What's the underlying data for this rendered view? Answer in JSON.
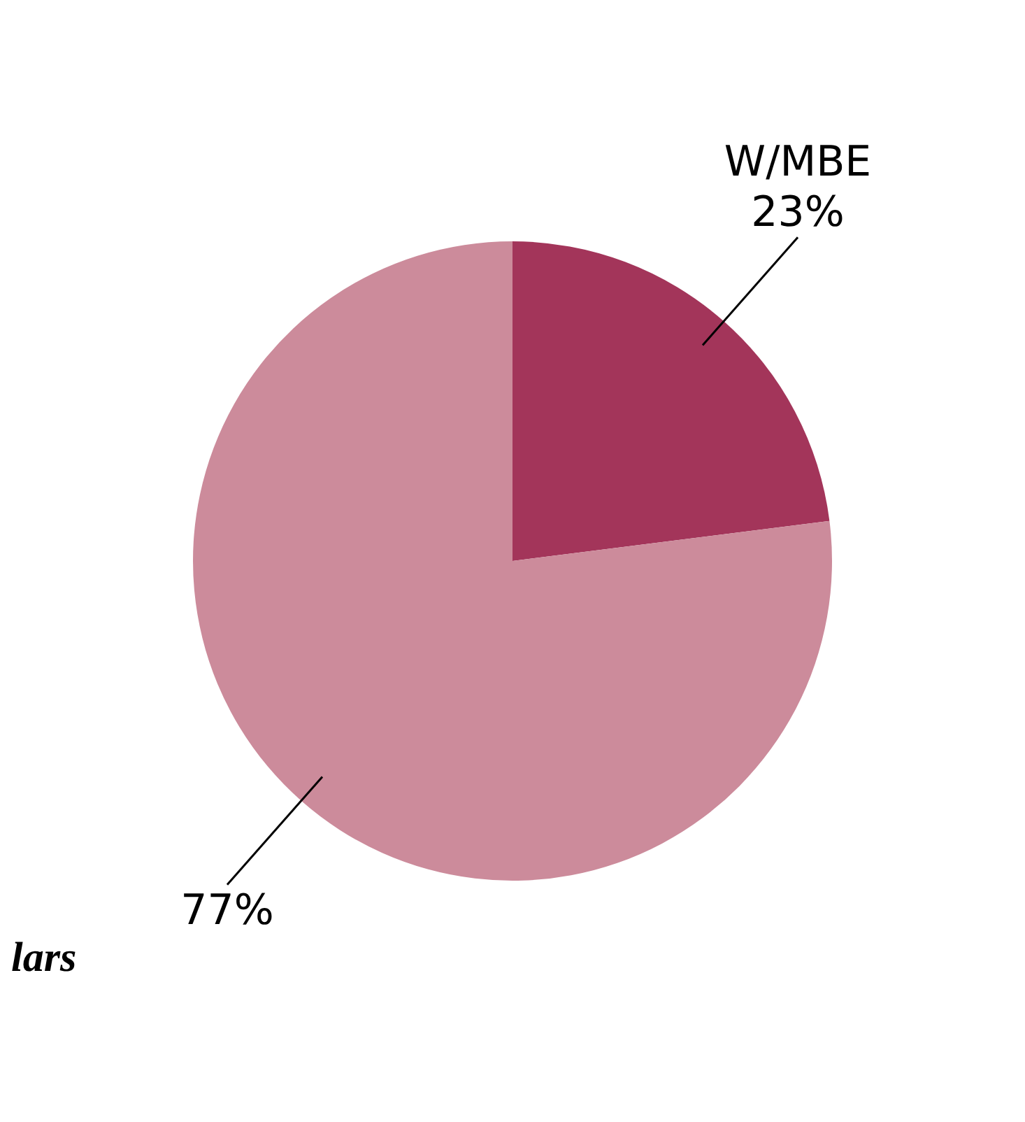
{
  "chart_data": {
    "type": "pie",
    "categories": [
      "W/MBE",
      null
    ],
    "values": [
      23,
      77
    ],
    "colors": [
      "#a3355a",
      "#cc8b9b"
    ],
    "value_labels": [
      "23%",
      "77%"
    ],
    "annotations": [
      "lars"
    ],
    "legend": false
  }
}
